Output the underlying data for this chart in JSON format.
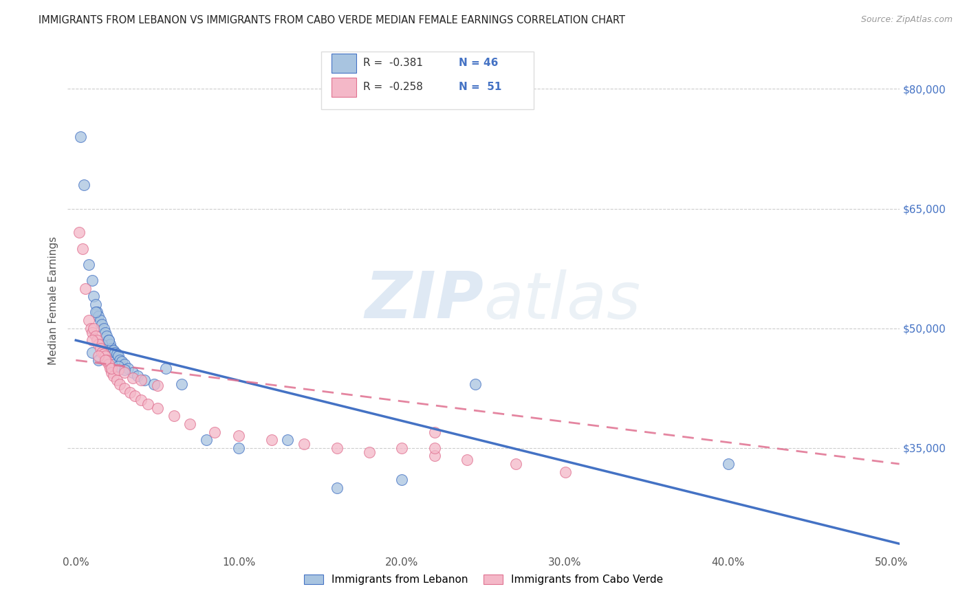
{
  "title": "IMMIGRANTS FROM LEBANON VS IMMIGRANTS FROM CABO VERDE MEDIAN FEMALE EARNINGS CORRELATION CHART",
  "source": "Source: ZipAtlas.com",
  "ylabel": "Median Female Earnings",
  "x_ticklabels": [
    "0.0%",
    "10.0%",
    "20.0%",
    "30.0%",
    "40.0%",
    "50.0%"
  ],
  "x_ticks": [
    0.0,
    0.1,
    0.2,
    0.3,
    0.4,
    0.5
  ],
  "y_ticklabels_right": [
    "$80,000",
    "$65,000",
    "$50,000",
    "$35,000"
  ],
  "y_ticks_right": [
    80000,
    65000,
    50000,
    35000
  ],
  "xlim": [
    -0.005,
    0.505
  ],
  "ylim": [
    22000,
    85000
  ],
  "legend_labels": [
    "Immigrants from Lebanon",
    "Immigrants from Cabo Verde"
  ],
  "color_lebanon": "#a8c4e0",
  "color_cabo_verde": "#f4b8c8",
  "line_color_lebanon": "#4472c4",
  "line_color_cabo_verde": "#e07090",
  "background_color": "#ffffff",
  "title_color": "#222222",
  "right_axis_color": "#4472c4",
  "watermark_zip": "ZIP",
  "watermark_atlas": "atlas",
  "lebanon_x": [
    0.003,
    0.005,
    0.008,
    0.01,
    0.011,
    0.012,
    0.013,
    0.014,
    0.015,
    0.016,
    0.017,
    0.018,
    0.019,
    0.02,
    0.021,
    0.022,
    0.023,
    0.024,
    0.025,
    0.026,
    0.027,
    0.028,
    0.03,
    0.032,
    0.035,
    0.038,
    0.042,
    0.048,
    0.055,
    0.065,
    0.08,
    0.1,
    0.13,
    0.16,
    0.2,
    0.245,
    0.01,
    0.014,
    0.018,
    0.022,
    0.026,
    0.03,
    0.4,
    0.012,
    0.016,
    0.02
  ],
  "lebanon_y": [
    74000,
    68000,
    58000,
    56000,
    54000,
    53000,
    52000,
    51500,
    51000,
    50500,
    50000,
    49500,
    49000,
    48500,
    48000,
    47500,
    47200,
    47000,
    46800,
    46500,
    46000,
    45800,
    45500,
    45000,
    44500,
    44000,
    43500,
    43000,
    45000,
    43000,
    36000,
    35000,
    36000,
    30000,
    31000,
    43000,
    47000,
    46000,
    46500,
    45500,
    45200,
    44800,
    33000,
    52000,
    48000,
    48500
  ],
  "caboverde_x": [
    0.002,
    0.004,
    0.006,
    0.008,
    0.009,
    0.01,
    0.011,
    0.012,
    0.013,
    0.014,
    0.015,
    0.016,
    0.017,
    0.018,
    0.019,
    0.02,
    0.021,
    0.022,
    0.023,
    0.025,
    0.027,
    0.03,
    0.033,
    0.036,
    0.04,
    0.044,
    0.05,
    0.06,
    0.07,
    0.085,
    0.1,
    0.12,
    0.14,
    0.16,
    0.18,
    0.2,
    0.22,
    0.24,
    0.27,
    0.3,
    0.01,
    0.014,
    0.018,
    0.022,
    0.026,
    0.03,
    0.035,
    0.04,
    0.05,
    0.22,
    0.22
  ],
  "caboverde_y": [
    62000,
    60000,
    55000,
    51000,
    50000,
    49500,
    50000,
    49000,
    48500,
    48000,
    47500,
    47000,
    46800,
    46500,
    46000,
    45500,
    45000,
    44500,
    44000,
    43500,
    43000,
    42500,
    42000,
    41500,
    41000,
    40500,
    40000,
    39000,
    38000,
    37000,
    36500,
    36000,
    35500,
    35000,
    34500,
    35000,
    34000,
    33500,
    33000,
    32000,
    48500,
    46500,
    46000,
    45000,
    44800,
    44500,
    43800,
    43500,
    42800,
    37000,
    35000
  ],
  "line_lebanon_x0": 0.0,
  "line_lebanon_y0": 48500,
  "line_lebanon_x1": 0.505,
  "line_lebanon_y1": 23000,
  "line_cabo_x0": 0.0,
  "line_cabo_y0": 46000,
  "line_cabo_x1": 0.505,
  "line_cabo_y1": 33000
}
